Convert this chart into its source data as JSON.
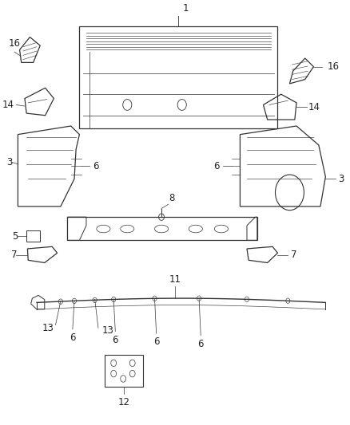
{
  "background_color": "#ffffff",
  "fig_width": 4.38,
  "fig_height": 5.33,
  "dpi": 100,
  "line_color": "#333333",
  "label_color": "#222222",
  "label_fontsize": 8.5
}
